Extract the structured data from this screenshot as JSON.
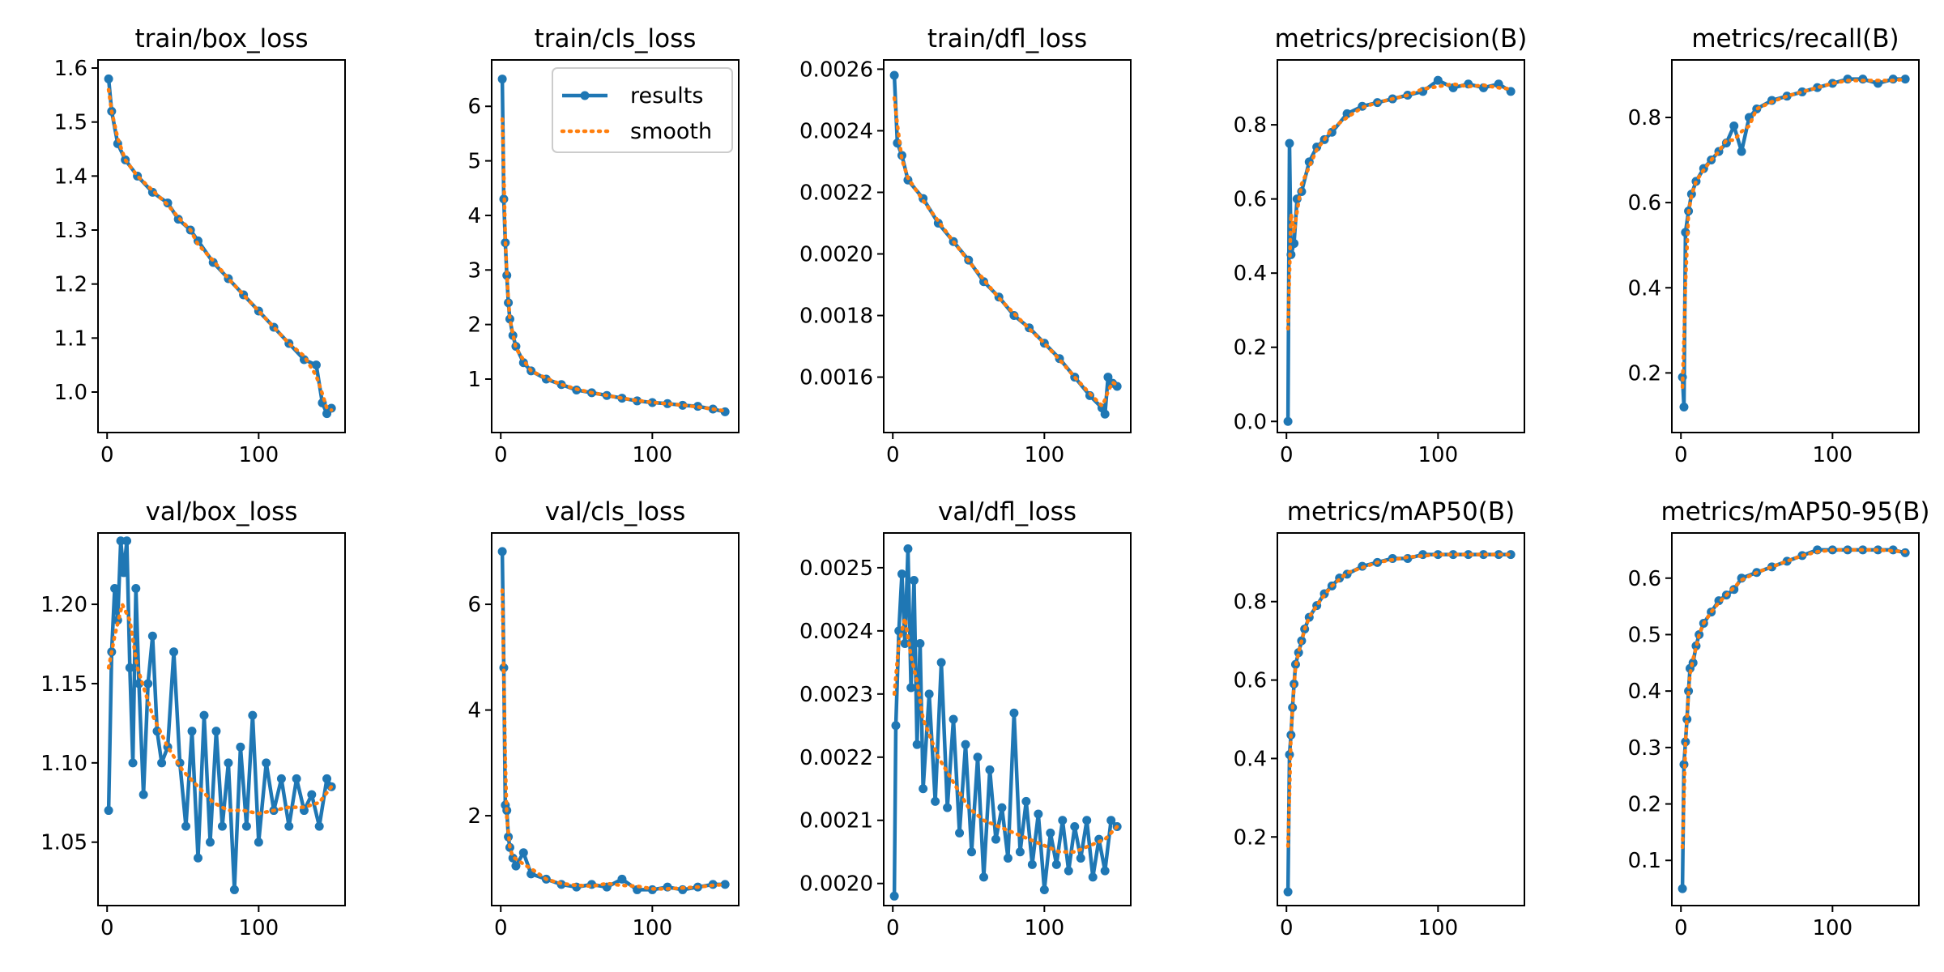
{
  "colors": {
    "results": "#1f77b4",
    "smooth": "#ff7f0e"
  },
  "legend": {
    "results": "results",
    "smooth": "smooth",
    "placement": "upper-right"
  },
  "chart_data": [
    {
      "type": "line",
      "title": "train/box_loss",
      "xlim": [
        -6,
        157
      ],
      "ylim": [
        0.925,
        1.615
      ],
      "yticks": [
        1.0,
        1.1,
        1.2,
        1.3,
        1.4,
        1.5,
        1.6
      ],
      "ytick_decimals": 1,
      "xticks": [
        0,
        100
      ],
      "series": [
        {
          "x": [
            1,
            3,
            7,
            12,
            20,
            30,
            40,
            47,
            55,
            60,
            70,
            80,
            90,
            100,
            110,
            120,
            130,
            138,
            142,
            145,
            148
          ],
          "y": [
            1.58,
            1.52,
            1.46,
            1.43,
            1.4,
            1.37,
            1.35,
            1.32,
            1.3,
            1.28,
            1.24,
            1.21,
            1.18,
            1.15,
            1.12,
            1.09,
            1.06,
            1.05,
            0.98,
            0.96,
            0.97
          ]
        }
      ]
    },
    {
      "type": "line",
      "title": "train/cls_loss",
      "xlim": [
        -6,
        157
      ],
      "ylim": [
        0.02,
        6.85
      ],
      "yticks": [
        1,
        2,
        3,
        4,
        5,
        6
      ],
      "ytick_decimals": 0,
      "xticks": [
        0,
        100
      ],
      "legend": true,
      "series": [
        {
          "x": [
            1,
            2,
            3,
            4,
            5,
            6,
            8,
            10,
            15,
            20,
            30,
            40,
            50,
            60,
            70,
            80,
            90,
            100,
            110,
            120,
            130,
            140,
            148
          ],
          "y": [
            6.5,
            4.3,
            3.5,
            2.9,
            2.4,
            2.1,
            1.8,
            1.6,
            1.3,
            1.15,
            1.0,
            0.9,
            0.8,
            0.75,
            0.7,
            0.65,
            0.6,
            0.57,
            0.55,
            0.52,
            0.5,
            0.45,
            0.4
          ]
        }
      ]
    },
    {
      "type": "line",
      "title": "train/dfl_loss",
      "xlim": [
        -6,
        157
      ],
      "ylim": [
        0.00142,
        0.00263
      ],
      "yticks": [
        0.0016,
        0.0018,
        0.002,
        0.0022,
        0.0024,
        0.0026
      ],
      "ytick_decimals": 4,
      "xticks": [
        0,
        100
      ],
      "series": [
        {
          "x": [
            1,
            3,
            6,
            10,
            20,
            30,
            40,
            50,
            60,
            70,
            80,
            90,
            100,
            110,
            120,
            130,
            138,
            140,
            142,
            145,
            148
          ],
          "y": [
            0.00258,
            0.00236,
            0.00232,
            0.00224,
            0.00218,
            0.0021,
            0.00204,
            0.00198,
            0.00191,
            0.00186,
            0.0018,
            0.00176,
            0.00171,
            0.00166,
            0.0016,
            0.00154,
            0.0015,
            0.00148,
            0.0016,
            0.00158,
            0.00157
          ]
        }
      ]
    },
    {
      "type": "line",
      "title": "metrics/precision(B)",
      "xlim": [
        -6,
        157
      ],
      "ylim": [
        -0.03,
        0.975
      ],
      "yticks": [
        0.0,
        0.2,
        0.4,
        0.6,
        0.8
      ],
      "ytick_decimals": 1,
      "xticks": [
        0,
        100
      ],
      "series": [
        {
          "x": [
            1,
            2,
            3,
            5,
            7,
            10,
            15,
            20,
            25,
            30,
            40,
            50,
            60,
            70,
            80,
            90,
            100,
            110,
            120,
            130,
            140,
            148
          ],
          "y": [
            0.0,
            0.75,
            0.45,
            0.48,
            0.6,
            0.62,
            0.7,
            0.74,
            0.76,
            0.78,
            0.83,
            0.85,
            0.86,
            0.87,
            0.88,
            0.89,
            0.92,
            0.9,
            0.91,
            0.9,
            0.91,
            0.89
          ]
        }
      ]
    },
    {
      "type": "line",
      "title": "metrics/recall(B)",
      "xlim": [
        -6,
        157
      ],
      "ylim": [
        0.06,
        0.935
      ],
      "yticks": [
        0.2,
        0.4,
        0.6,
        0.8
      ],
      "ytick_decimals": 1,
      "xticks": [
        0,
        100
      ],
      "series": [
        {
          "x": [
            1,
            2,
            3,
            5,
            7,
            10,
            15,
            20,
            25,
            30,
            35,
            40,
            45,
            50,
            60,
            70,
            80,
            90,
            100,
            110,
            120,
            130,
            140,
            148
          ],
          "y": [
            0.19,
            0.12,
            0.53,
            0.58,
            0.62,
            0.65,
            0.68,
            0.7,
            0.72,
            0.74,
            0.78,
            0.72,
            0.8,
            0.82,
            0.84,
            0.85,
            0.86,
            0.87,
            0.88,
            0.89,
            0.89,
            0.88,
            0.89,
            0.89
          ]
        }
      ]
    },
    {
      "type": "line",
      "title": "val/box_loss",
      "xlim": [
        -6,
        157
      ],
      "ylim": [
        1.01,
        1.245
      ],
      "yticks": [
        1.05,
        1.1,
        1.15,
        1.2
      ],
      "ytick_decimals": 2,
      "xticks": [
        0,
        100
      ],
      "series": [
        {
          "x": [
            1,
            3,
            5,
            7,
            9,
            11,
            13,
            15,
            17,
            19,
            21,
            24,
            27,
            30,
            33,
            36,
            40,
            44,
            48,
            52,
            56,
            60,
            64,
            68,
            72,
            76,
            80,
            84,
            88,
            92,
            96,
            100,
            105,
            110,
            115,
            120,
            125,
            130,
            135,
            140,
            145,
            148
          ],
          "y": [
            1.07,
            1.17,
            1.21,
            1.19,
            1.24,
            1.22,
            1.24,
            1.16,
            1.1,
            1.21,
            1.15,
            1.08,
            1.15,
            1.18,
            1.12,
            1.1,
            1.11,
            1.17,
            1.1,
            1.06,
            1.12,
            1.04,
            1.13,
            1.05,
            1.12,
            1.06,
            1.1,
            1.02,
            1.11,
            1.06,
            1.13,
            1.05,
            1.1,
            1.07,
            1.09,
            1.06,
            1.09,
            1.07,
            1.08,
            1.06,
            1.09,
            1.085
          ]
        },
        {
          "x": [
            1,
            5,
            10,
            15,
            20,
            30,
            40,
            50,
            60,
            70,
            80,
            90,
            100,
            110,
            120,
            130,
            140,
            148
          ],
          "y": [
            1.16,
            1.18,
            1.2,
            1.19,
            1.16,
            1.13,
            1.11,
            1.095,
            1.085,
            1.075,
            1.07,
            1.07,
            1.068,
            1.07,
            1.072,
            1.072,
            1.075,
            1.085
          ]
        }
      ]
    },
    {
      "type": "line",
      "title": "val/cls_loss",
      "xlim": [
        -6,
        157
      ],
      "ylim": [
        0.3,
        7.35
      ],
      "yticks": [
        2,
        4,
        6
      ],
      "ytick_decimals": 0,
      "xticks": [
        0,
        100
      ],
      "series": [
        {
          "x": [
            1,
            2,
            3,
            4,
            5,
            6,
            8,
            10,
            15,
            20,
            30,
            40,
            50,
            60,
            70,
            80,
            90,
            100,
            110,
            120,
            130,
            140,
            148
          ],
          "y": [
            7.0,
            4.8,
            2.2,
            2.1,
            1.6,
            1.4,
            1.2,
            1.05,
            1.3,
            0.9,
            0.8,
            0.7,
            0.65,
            0.7,
            0.65,
            0.8,
            0.6,
            0.6,
            0.65,
            0.6,
            0.65,
            0.7,
            0.7
          ]
        }
      ]
    },
    {
      "type": "line",
      "title": "val/dfl_loss",
      "xlim": [
        -6,
        157
      ],
      "ylim": [
        0.001965,
        0.002555
      ],
      "yticks": [
        0.002,
        0.0021,
        0.0022,
        0.0023,
        0.0024,
        0.0025
      ],
      "ytick_decimals": 4,
      "xticks": [
        0,
        100
      ],
      "series": [
        {
          "x": [
            1,
            2,
            4,
            6,
            8,
            10,
            12,
            14,
            16,
            18,
            20,
            24,
            28,
            32,
            36,
            40,
            44,
            48,
            52,
            56,
            60,
            64,
            68,
            72,
            76,
            80,
            84,
            88,
            92,
            96,
            100,
            104,
            108,
            112,
            116,
            120,
            124,
            128,
            132,
            136,
            140,
            144,
            148
          ],
          "y": [
            0.00198,
            0.00225,
            0.0024,
            0.00249,
            0.00238,
            0.00253,
            0.00231,
            0.00248,
            0.00222,
            0.00238,
            0.00215,
            0.0023,
            0.00213,
            0.00235,
            0.00212,
            0.00226,
            0.00208,
            0.00222,
            0.00205,
            0.0022,
            0.00201,
            0.00218,
            0.00207,
            0.00212,
            0.00204,
            0.00227,
            0.00205,
            0.00213,
            0.00203,
            0.00211,
            0.00199,
            0.00208,
            0.00203,
            0.0021,
            0.00202,
            0.00209,
            0.00204,
            0.0021,
            0.00201,
            0.00207,
            0.00202,
            0.0021,
            0.00209
          ]
        },
        {
          "x": [
            1,
            4,
            8,
            12,
            16,
            20,
            30,
            40,
            50,
            60,
            70,
            80,
            90,
            100,
            110,
            120,
            130,
            140,
            148
          ],
          "y": [
            0.0023,
            0.00238,
            0.00242,
            0.00236,
            0.00232,
            0.00226,
            0.0022,
            0.00216,
            0.00212,
            0.0021,
            0.00209,
            0.00208,
            0.00207,
            0.00206,
            0.00205,
            0.00205,
            0.00206,
            0.00207,
            0.00209
          ]
        }
      ]
    },
    {
      "type": "line",
      "title": "metrics/mAP50(B)",
      "xlim": [
        -6,
        157
      ],
      "ylim": [
        0.025,
        0.975
      ],
      "yticks": [
        0.2,
        0.4,
        0.6,
        0.8
      ],
      "ytick_decimals": 1,
      "xticks": [
        0,
        100
      ],
      "series": [
        {
          "x": [
            1,
            2,
            3,
            4,
            5,
            6,
            8,
            10,
            12,
            15,
            20,
            25,
            30,
            35,
            40,
            50,
            60,
            70,
            80,
            90,
            100,
            110,
            120,
            130,
            140,
            148
          ],
          "y": [
            0.06,
            0.41,
            0.46,
            0.53,
            0.59,
            0.64,
            0.67,
            0.7,
            0.73,
            0.76,
            0.79,
            0.82,
            0.84,
            0.86,
            0.87,
            0.89,
            0.9,
            0.91,
            0.91,
            0.92,
            0.92,
            0.92,
            0.92,
            0.92,
            0.92,
            0.92
          ]
        }
      ]
    },
    {
      "type": "line",
      "title": "metrics/mAP50-95(B)",
      "xlim": [
        -6,
        157
      ],
      "ylim": [
        0.02,
        0.68
      ],
      "yticks": [
        0.1,
        0.2,
        0.3,
        0.4,
        0.5,
        0.6
      ],
      "ytick_decimals": 1,
      "xticks": [
        0,
        100
      ],
      "series": [
        {
          "x": [
            1,
            2,
            3,
            4,
            5,
            6,
            8,
            10,
            12,
            15,
            20,
            25,
            30,
            35,
            40,
            50,
            60,
            70,
            80,
            90,
            100,
            110,
            120,
            130,
            140,
            148
          ],
          "y": [
            0.05,
            0.27,
            0.31,
            0.35,
            0.4,
            0.44,
            0.45,
            0.48,
            0.5,
            0.52,
            0.54,
            0.56,
            0.57,
            0.58,
            0.6,
            0.61,
            0.62,
            0.63,
            0.64,
            0.65,
            0.65,
            0.65,
            0.65,
            0.65,
            0.65,
            0.645
          ]
        }
      ]
    }
  ]
}
